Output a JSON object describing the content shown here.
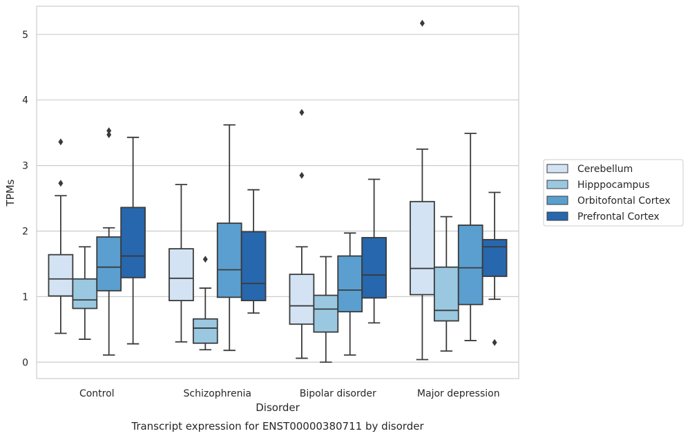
{
  "chart_data": {
    "type": "box",
    "title": "Transcript expression for ENST00000380711 by disorder",
    "xlabel": "Disorder",
    "ylabel": "TPMs",
    "ylim": [
      -0.25,
      5.43
    ],
    "yticks": [
      0,
      1,
      2,
      3,
      4,
      5
    ],
    "grid": true,
    "legend_position": "right",
    "categories": [
      "Control",
      "Schizophrenia",
      "Bipolar disorder",
      "Major depression"
    ],
    "series": [
      {
        "name": "Cerebellum",
        "color": "#d3e3f3",
        "boxes": [
          {
            "whislo": 0.44,
            "q1": 1.01,
            "med": 1.27,
            "q3": 1.64,
            "whishi": 2.54,
            "fliers": [
              2.73,
              3.36
            ]
          },
          {
            "whislo": 0.31,
            "q1": 0.94,
            "med": 1.28,
            "q3": 1.73,
            "whishi": 2.71,
            "fliers": []
          },
          {
            "whislo": 0.06,
            "q1": 0.58,
            "med": 0.86,
            "q3": 1.34,
            "whishi": 1.76,
            "fliers": [
              2.85,
              3.81
            ]
          },
          {
            "whislo": 0.04,
            "q1": 1.03,
            "med": 1.43,
            "q3": 2.45,
            "whishi": 3.25,
            "fliers": [
              5.17
            ]
          }
        ]
      },
      {
        "name": "Hipppocampus",
        "color": "#9ac8e0",
        "boxes": [
          {
            "whislo": 0.35,
            "q1": 0.82,
            "med": 0.95,
            "q3": 1.27,
            "whishi": 1.76,
            "fliers": []
          },
          {
            "whislo": 0.19,
            "q1": 0.29,
            "med": 0.52,
            "q3": 0.66,
            "whishi": 1.13,
            "fliers": [
              1.57
            ]
          },
          {
            "whislo": 0.0,
            "q1": 0.46,
            "med": 0.81,
            "q3": 1.02,
            "whishi": 1.61,
            "fliers": []
          },
          {
            "whislo": 0.17,
            "q1": 0.63,
            "med": 0.79,
            "q3": 1.45,
            "whishi": 2.22,
            "fliers": []
          }
        ]
      },
      {
        "name": "Orbitofontal Cortex",
        "color": "#5a9fcf",
        "boxes": [
          {
            "whislo": 0.11,
            "q1": 1.09,
            "med": 1.45,
            "q3": 1.91,
            "whishi": 2.05,
            "fliers": [
              3.47,
              3.53
            ]
          },
          {
            "whislo": 0.18,
            "q1": 0.99,
            "med": 1.41,
            "q3": 2.12,
            "whishi": 3.62,
            "fliers": []
          },
          {
            "whislo": 0.11,
            "q1": 0.77,
            "med": 1.1,
            "q3": 1.62,
            "whishi": 1.97,
            "fliers": []
          },
          {
            "whislo": 0.33,
            "q1": 0.88,
            "med": 1.44,
            "q3": 2.09,
            "whishi": 3.49,
            "fliers": []
          }
        ]
      },
      {
        "name": "Prefrontal Cortex",
        "color": "#2767ad",
        "boxes": [
          {
            "whislo": 0.28,
            "q1": 1.29,
            "med": 1.62,
            "q3": 2.36,
            "whishi": 3.43,
            "fliers": []
          },
          {
            "whislo": 0.75,
            "q1": 0.94,
            "med": 1.2,
            "q3": 1.99,
            "whishi": 2.63,
            "fliers": []
          },
          {
            "whislo": 0.6,
            "q1": 0.98,
            "med": 1.33,
            "q3": 1.9,
            "whishi": 2.79,
            "fliers": []
          },
          {
            "whislo": 0.96,
            "q1": 1.31,
            "med": 1.76,
            "q3": 1.87,
            "whishi": 2.59,
            "fliers": [
              0.3
            ]
          }
        ]
      }
    ]
  }
}
